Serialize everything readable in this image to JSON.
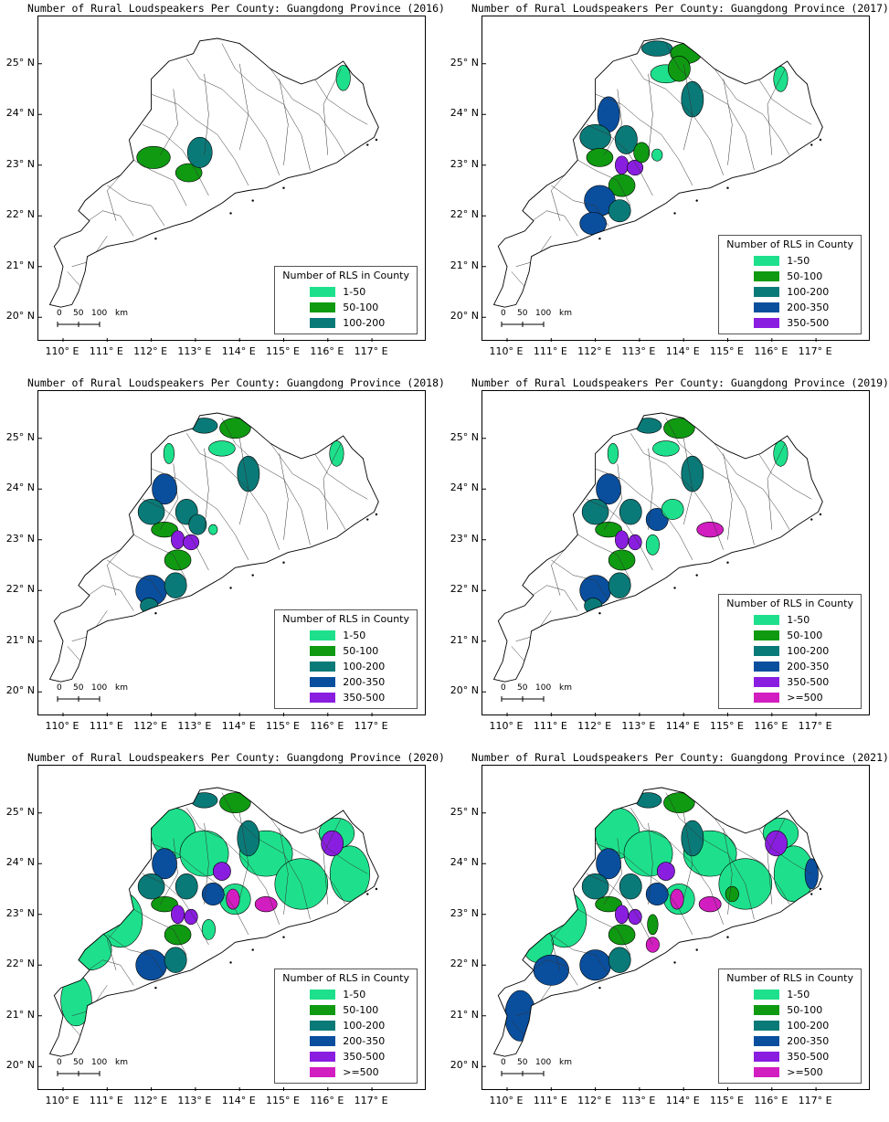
{
  "colors": {
    "1-50": "#1ee08c",
    "50-100": "#0f9a12",
    "100-200": "#0a7a78",
    "200-350": "#0a4f9e",
    "350-500": "#8a1ee0",
    ">=500": "#d21ec0"
  },
  "legend_title": "Number of RLS in County",
  "y_labels": [
    "25° N",
    "24° N",
    "23° N",
    "22° N",
    "21° N",
    "20° N"
  ],
  "x_labels": [
    "110° E",
    "111° E",
    "112° E",
    "113° E",
    "114° E",
    "115° E",
    "116° E",
    "117° E"
  ],
  "scalebar": {
    "l0": "0",
    "l50": "50",
    "l100": "100",
    "unit": "km"
  },
  "panels": [
    {
      "title": "Number of Rural Loudspeakers Per County: Guangdong Province (2016)",
      "legend": [
        "1-50",
        "50-100",
        "100-200"
      ]
    },
    {
      "title": "Number of Rural Loudspeakers Per County: Guangdong Province (2017)",
      "legend": [
        "1-50",
        "50-100",
        "100-200",
        "200-350",
        "350-500"
      ]
    },
    {
      "title": "Number of Rural Loudspeakers Per County: Guangdong Province (2018)",
      "legend": [
        "1-50",
        "50-100",
        "100-200",
        "200-350",
        "350-500"
      ]
    },
    {
      "title": "Number of Rural Loudspeakers Per County: Guangdong Province (2019)",
      "legend": [
        "1-50",
        "50-100",
        "100-200",
        "200-350",
        "350-500",
        ">=500"
      ]
    },
    {
      "title": "Number of Rural Loudspeakers Per County: Guangdong Province (2020)",
      "legend": [
        "1-50",
        "50-100",
        "100-200",
        "200-350",
        "350-500",
        ">=500"
      ]
    },
    {
      "title": "Number of Rural Loudspeakers Per County: Guangdong Province (2021)",
      "legend": [
        "1-50",
        "50-100",
        "100-200",
        "200-350",
        "350-500",
        ">=500"
      ]
    }
  ]
}
